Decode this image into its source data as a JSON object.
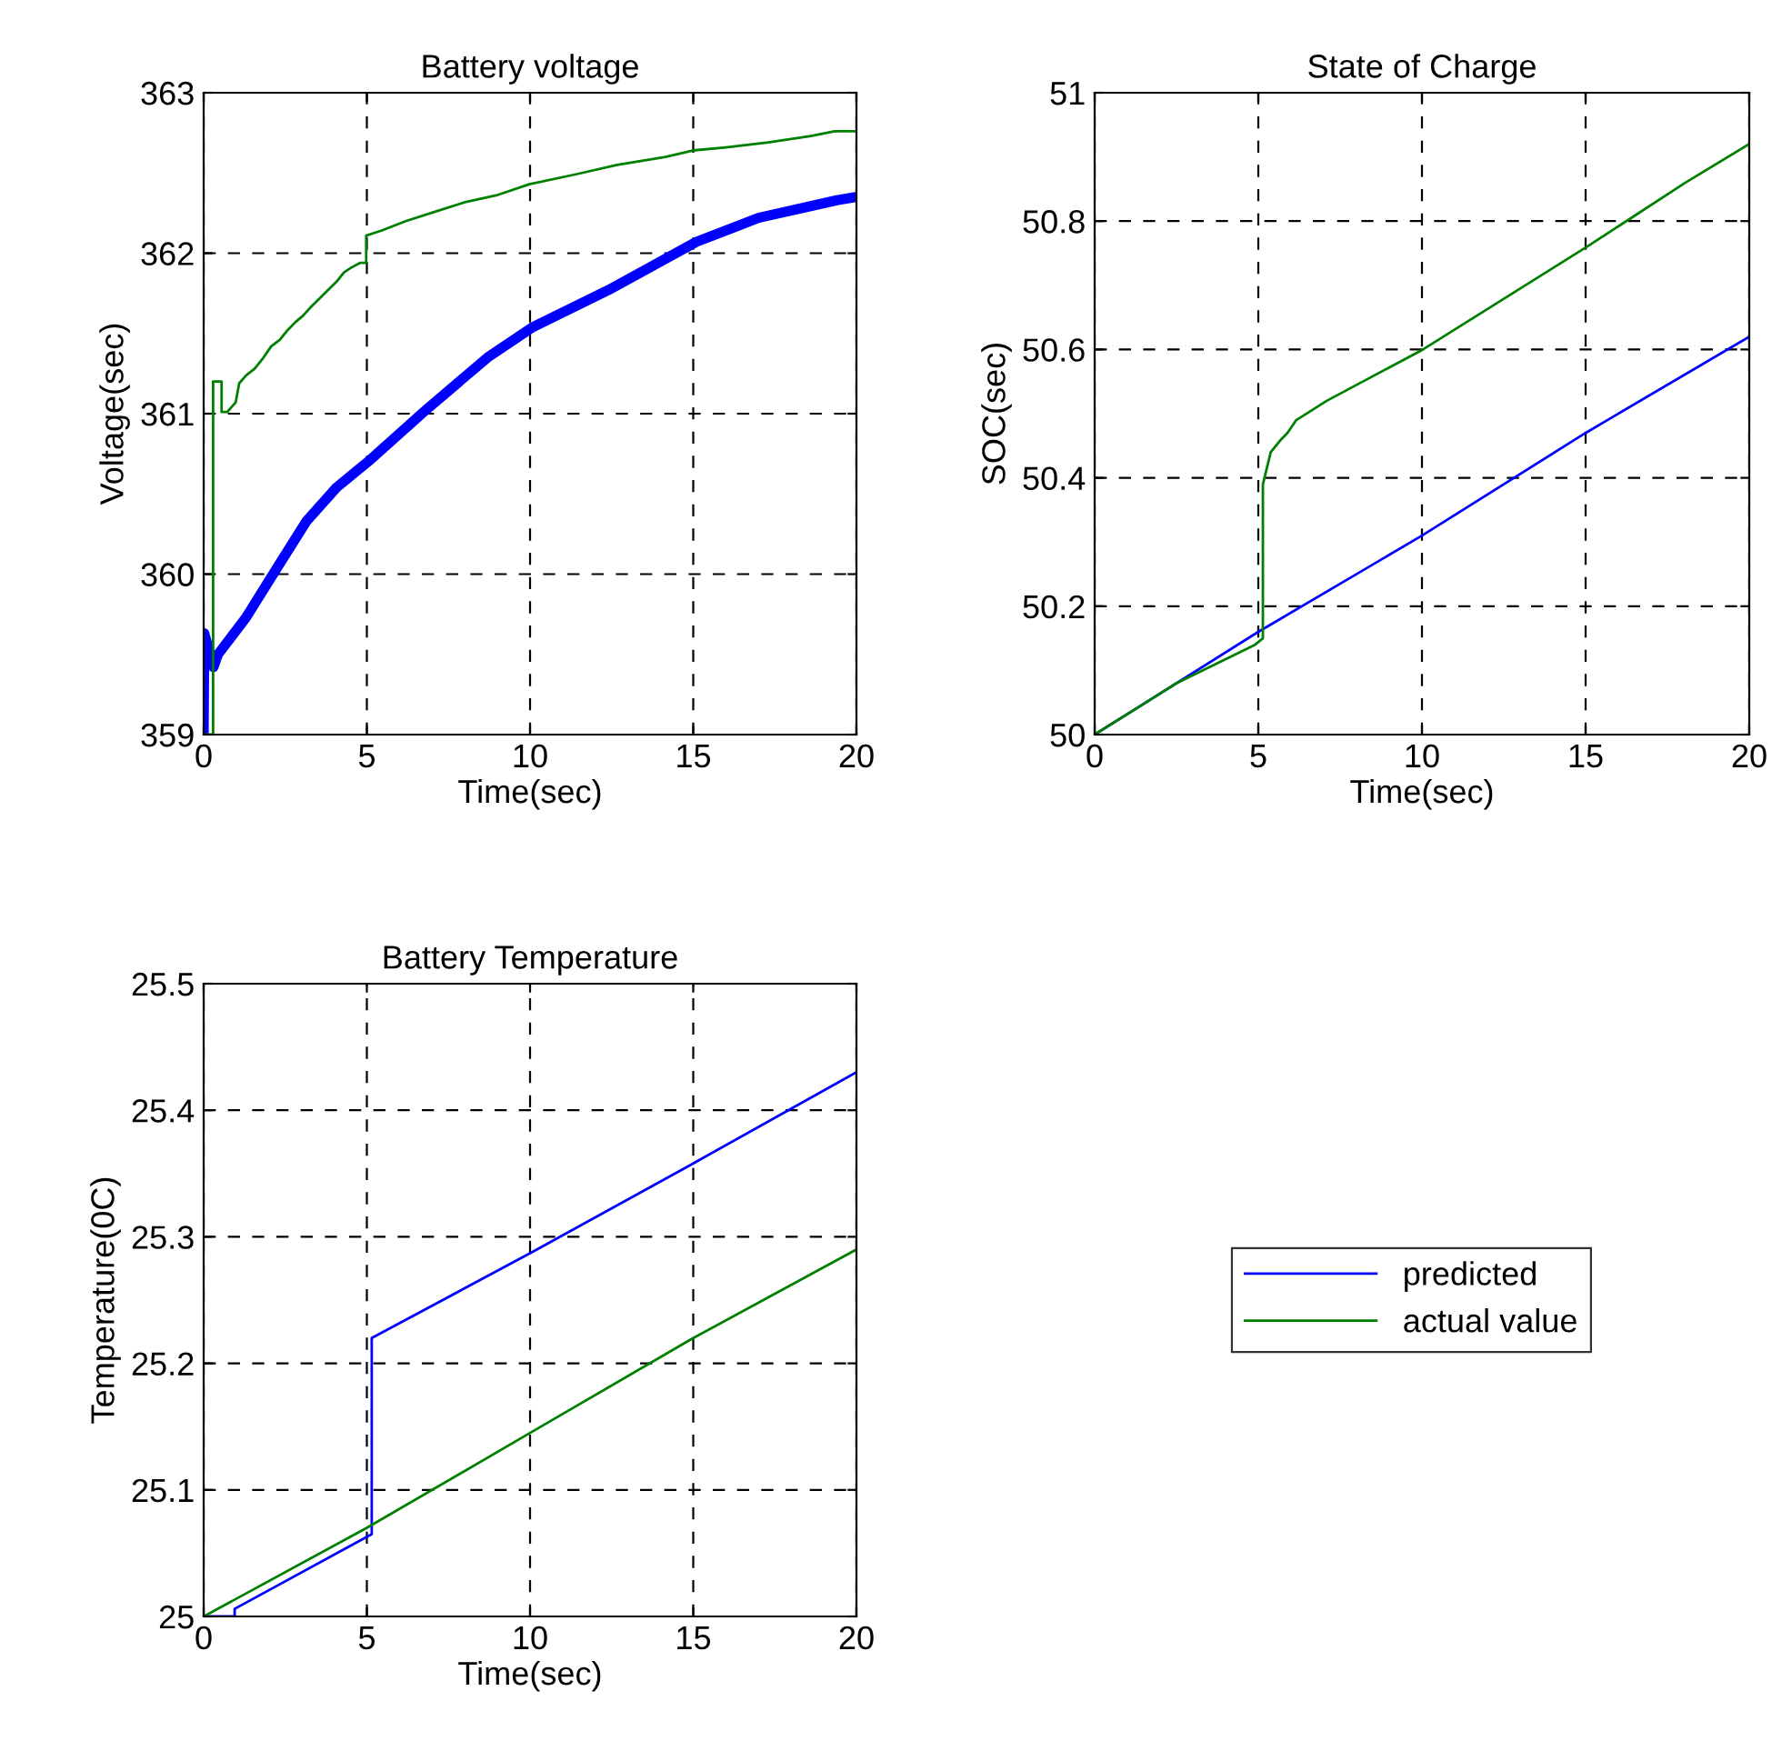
{
  "chart_data": [
    {
      "type": "line",
      "title": "Battery voltage",
      "xlabel": "Time(sec)",
      "ylabel": "Voltage(sec)",
      "xlim": [
        0,
        20
      ],
      "xticks": [
        0,
        5,
        10,
        15,
        20
      ],
      "ylim": [
        359,
        363
      ],
      "yticks": [
        359,
        360,
        361,
        362,
        363
      ],
      "grid": true,
      "line_style": "solid",
      "series": [
        {
          "color": "#0000ff",
          "x": [
            0,
            0.02,
            0.2,
            0.3,
            0.44,
            1.3,
            2.22,
            3.15,
            4.07,
            5.09,
            6.85,
            8.7,
            10.09,
            12.4,
            15.09,
            17.0,
            19.4,
            20
          ],
          "values": [
            359.0,
            359.63,
            359.5,
            359.42,
            359.5,
            359.73,
            360.03,
            360.33,
            360.54,
            360.71,
            361.03,
            361.35,
            361.54,
            361.77,
            362.07,
            362.22,
            362.33,
            362.35
          ]
        },
        {
          "color": "#008000",
          "x": [
            0,
            0.29,
            0.29,
            0.55,
            0.55,
            0.72,
            0.98,
            1.09,
            1.31,
            1.56,
            1.8,
            2.07,
            2.33,
            2.57,
            2.81,
            3.04,
            3.31,
            3.56,
            3.81,
            4.06,
            4.3,
            4.52,
            4.8,
            4.98,
            4.98,
            5.44,
            6.19,
            7.11,
            8.04,
            8.96,
            9.98,
            11.37,
            12.67,
            14.15,
            14.98,
            16.0,
            17.3,
            18.6,
            19.33,
            20
          ],
          "values": [
            359.0,
            359.0,
            361.2,
            361.2,
            361.01,
            361.01,
            361.07,
            361.19,
            361.24,
            361.28,
            361.34,
            361.42,
            361.46,
            361.52,
            361.57,
            361.61,
            361.67,
            361.72,
            361.77,
            361.82,
            361.88,
            361.91,
            361.94,
            361.94,
            362.11,
            362.14,
            362.2,
            362.26,
            362.32,
            362.36,
            362.43,
            362.49,
            362.55,
            362.6,
            362.64,
            362.66,
            362.69,
            362.73,
            362.76,
            362.76
          ]
        }
      ]
    },
    {
      "type": "line",
      "title": "State of Charge",
      "xlabel": "Time(sec)",
      "ylabel": "SOC(sec)",
      "xlim": [
        0,
        20
      ],
      "xticks": [
        0,
        5,
        10,
        15,
        20
      ],
      "ylim": [
        50,
        51
      ],
      "yticks": [
        50,
        50.2,
        50.4,
        50.6,
        50.8,
        51
      ],
      "grid": true,
      "line_style": "solid",
      "series": [
        {
          "color": "#0000ff",
          "x": [
            0,
            5,
            10,
            15,
            20
          ],
          "values": [
            50.0,
            50.16,
            50.31,
            50.47,
            50.62
          ]
        },
        {
          "color": "#008000",
          "x": [
            0,
            2.5,
            4.9,
            5.14,
            5.14,
            5.38,
            5.7,
            5.89,
            6.16,
            7.09,
            10.03,
            15.04,
            18.05,
            20
          ],
          "values": [
            50.0,
            50.08,
            50.14,
            50.15,
            50.39,
            50.44,
            50.46,
            50.47,
            50.49,
            50.52,
            50.6,
            50.76,
            50.86,
            50.92
          ]
        }
      ]
    },
    {
      "type": "line",
      "title": "Battery Temperature",
      "xlabel": "Time(sec)",
      "ylabel": "Temperature(0C)",
      "xlim": [
        0,
        20
      ],
      "xticks": [
        0,
        5,
        10,
        15,
        20
      ],
      "ylim": [
        25,
        25.5
      ],
      "yticks": [
        25,
        25.1,
        25.2,
        25.3,
        25.4,
        25.5
      ],
      "grid": true,
      "line_style": "solid",
      "legend": "right",
      "series": [
        {
          "name": "predicted",
          "color": "#0000ff",
          "x": [
            0,
            0.95,
            0.95,
            5.15,
            5.15,
            10,
            15,
            20
          ],
          "values": [
            25.0,
            25.0,
            25.006,
            25.065,
            25.22,
            25.287,
            25.358,
            25.43
          ]
        },
        {
          "name": "actual value",
          "color": "#008000",
          "x": [
            0,
            5,
            10,
            15,
            20
          ],
          "values": [
            25.0,
            25.07,
            25.145,
            25.22,
            25.29
          ]
        }
      ]
    }
  ]
}
